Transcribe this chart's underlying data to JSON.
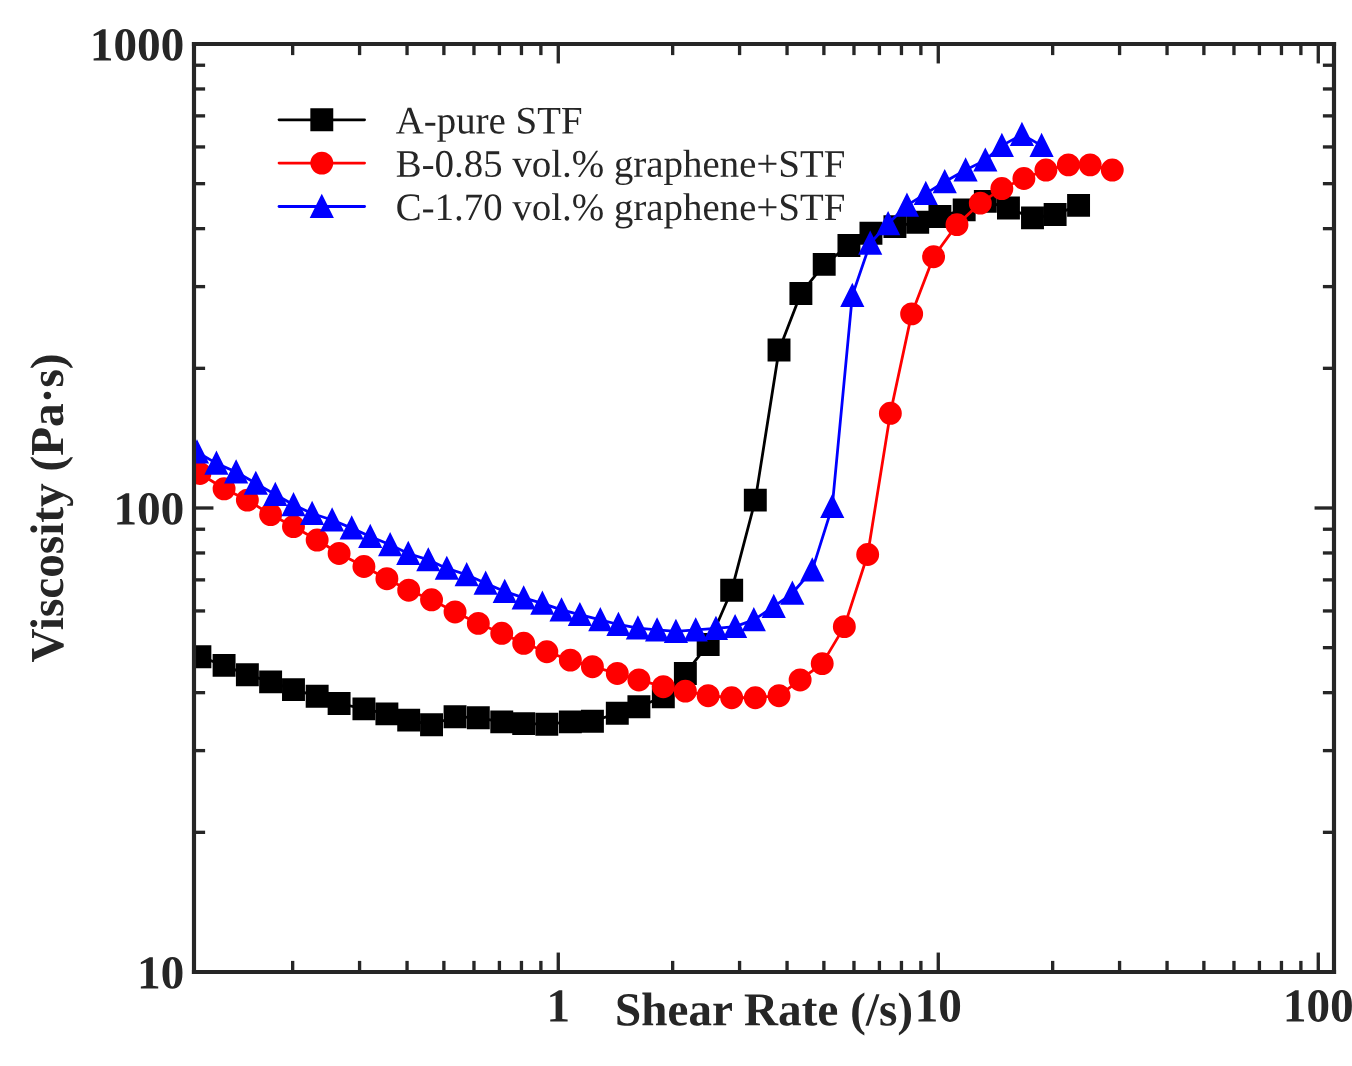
{
  "chart_data": {
    "type": "line",
    "xlabel": "Shear Rate (/s)",
    "ylabel": "Viscosity (Pa·s)",
    "log": "xy",
    "xlim": [
      0.11,
      110
    ],
    "ylim": [
      10,
      1000
    ],
    "xticks": [
      1,
      10,
      100
    ],
    "yticks": [
      10,
      100,
      1000
    ],
    "legend": "top left",
    "series": [
      {
        "name": "A-pure STF",
        "color": "#000000",
        "marker": "square",
        "x": [
          0.114,
          0.132,
          0.152,
          0.175,
          0.201,
          0.232,
          0.265,
          0.308,
          0.354,
          0.404,
          0.464,
          0.535,
          0.616,
          0.71,
          0.811,
          0.933,
          1.076,
          1.23,
          1.43,
          1.63,
          1.89,
          2.16,
          2.48,
          2.86,
          3.3,
          3.81,
          4.35,
          5.01,
          5.82,
          6.65,
          7.69,
          8.83,
          10.1,
          11.7,
          13.3,
          15.3,
          17.7,
          20.3,
          23.4
        ],
        "values": [
          47.8,
          45.8,
          43.7,
          42.2,
          40.6,
          39.3,
          37.9,
          36.9,
          36.0,
          34.9,
          34.1,
          35.5,
          35.3,
          34.6,
          34.3,
          34.2,
          34.6,
          34.7,
          36.1,
          37.3,
          39.2,
          44.0,
          50.8,
          66.5,
          104,
          219,
          290,
          335,
          368,
          391,
          404,
          413,
          425,
          439,
          458,
          443,
          422,
          429,
          449
        ]
      },
      {
        "name": "B-0.85 vol.% graphene+STF",
        "color": "#ff0000",
        "marker": "circle",
        "x": [
          0.114,
          0.132,
          0.152,
          0.175,
          0.201,
          0.232,
          0.265,
          0.308,
          0.354,
          0.404,
          0.464,
          0.535,
          0.616,
          0.71,
          0.811,
          0.933,
          1.076,
          1.23,
          1.43,
          1.63,
          1.89,
          2.16,
          2.48,
          2.86,
          3.3,
          3.81,
          4.33,
          4.95,
          5.66,
          6.52,
          7.48,
          8.51,
          9.72,
          11.2,
          12.9,
          14.7,
          16.8,
          19.2,
          22.0,
          25.1,
          28.7
        ],
        "values": [
          118.7,
          110,
          104,
          96.8,
          91.2,
          85.3,
          79.8,
          74.8,
          70.4,
          66.5,
          63.4,
          59.7,
          56.4,
          53.7,
          51.1,
          49.0,
          47.0,
          45.5,
          44.0,
          42.6,
          41.2,
          40.3,
          39.4,
          39.0,
          39.0,
          39.4,
          42.6,
          46.2,
          55.5,
          79.4,
          160,
          262,
          348,
          408,
          454,
          488,
          513,
          535,
          549,
          549,
          535
        ]
      },
      {
        "name": "C-1.70 vol.% graphene+STF",
        "color": "#0000ff",
        "marker": "triangle",
        "x": [
          0.112,
          0.126,
          0.142,
          0.16,
          0.18,
          0.201,
          0.225,
          0.254,
          0.286,
          0.32,
          0.361,
          0.403,
          0.455,
          0.509,
          0.574,
          0.644,
          0.723,
          0.811,
          0.908,
          1.02,
          1.14,
          1.29,
          1.44,
          1.62,
          1.82,
          2.04,
          2.3,
          2.6,
          2.92,
          3.27,
          3.69,
          4.13,
          4.66,
          5.26,
          5.94,
          6.62,
          7.38,
          8.27,
          9.27,
          10.4,
          11.8,
          13.3,
          14.7,
          16.6,
          18.7
        ],
        "values": [
          132,
          124.8,
          119.6,
          113,
          106.9,
          101.6,
          97.3,
          94.2,
          90.5,
          86.8,
          83.3,
          79.8,
          77.3,
          74.1,
          71.8,
          68.8,
          66.1,
          64.0,
          62.3,
          60.3,
          58.9,
          57.4,
          56.1,
          55.1,
          54.6,
          54.2,
          54.6,
          55.0,
          55.5,
          57.4,
          61.3,
          65.5,
          73.5,
          100.7,
          287,
          372,
          410,
          449,
          476,
          505,
          535,
          562,
          604,
          638,
          604
        ]
      }
    ]
  }
}
